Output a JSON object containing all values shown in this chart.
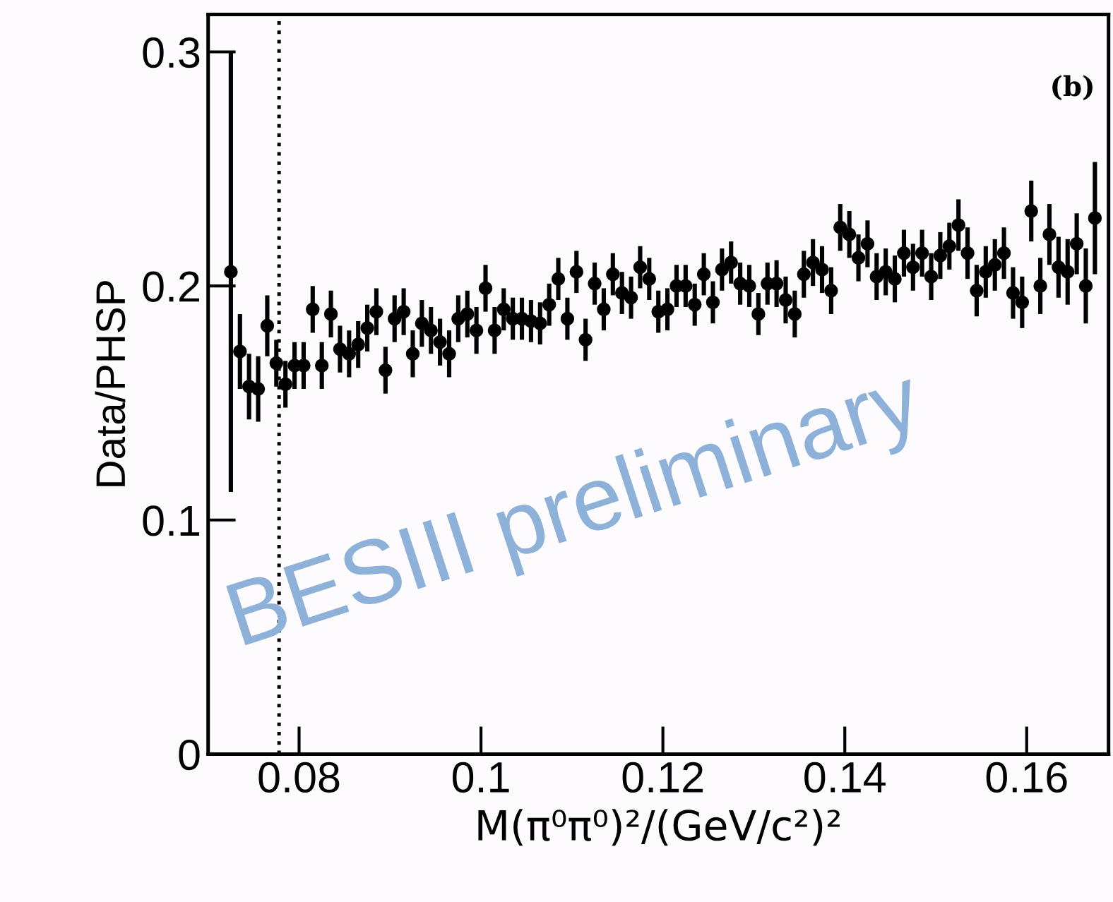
{
  "chart_data": {
    "type": "scatter",
    "xlabel": "M(π⁰π⁰)²/(GeV/c²)²",
    "ylabel": "Data/PHSP",
    "annotations": [
      "(b)",
      "BESIII preliminary"
    ],
    "x": [
      0.0725,
      0.0735,
      0.0745,
      0.0755,
      0.0765,
      0.0775,
      0.0785,
      0.0795,
      0.0805,
      0.0815,
      0.0825,
      0.0835,
      0.0845,
      0.0855,
      0.0865,
      0.0875,
      0.0885,
      0.0895,
      0.0905,
      0.0915,
      0.0925,
      0.0935,
      0.0945,
      0.0955,
      0.0965,
      0.0975,
      0.0985,
      0.0995,
      0.1005,
      0.1015,
      0.1025,
      0.1035,
      0.1045,
      0.1055,
      0.1065,
      0.1075,
      0.1085,
      0.1095,
      0.1105,
      0.1115,
      0.1125,
      0.1135,
      0.1145,
      0.1155,
      0.1165,
      0.1175,
      0.1185,
      0.1195,
      0.1205,
      0.1215,
      0.1225,
      0.1235,
      0.1245,
      0.1255,
      0.1265,
      0.1275,
      0.1285,
      0.1295,
      0.1305,
      0.1315,
      0.1325,
      0.1335,
      0.1345,
      0.1355,
      0.1365,
      0.1375,
      0.1385,
      0.1395,
      0.1405,
      0.1415,
      0.1425,
      0.1435,
      0.1445,
      0.1455,
      0.1465,
      0.1475,
      0.1485,
      0.1495,
      0.1505,
      0.1515,
      0.1525,
      0.1535,
      0.1545,
      0.1555,
      0.1565,
      0.1575,
      0.1585,
      0.1595,
      0.1605,
      0.1615,
      0.1625,
      0.1635,
      0.1645,
      0.1655,
      0.1665,
      0.1675
    ],
    "series": [
      {
        "color": "#000000",
        "values": [
          0.206,
          0.172,
          0.157,
          0.156,
          0.183,
          0.167,
          0.158,
          0.166,
          0.166,
          0.19,
          0.166,
          0.188,
          0.173,
          0.171,
          0.175,
          0.182,
          0.189,
          0.164,
          0.186,
          0.189,
          0.171,
          0.184,
          0.181,
          0.176,
          0.171,
          0.186,
          0.188,
          0.181,
          0.199,
          0.181,
          0.19,
          0.186,
          0.186,
          0.185,
          0.184,
          0.192,
          0.203,
          0.186,
          0.206,
          0.177,
          0.201,
          0.19,
          0.205,
          0.197,
          0.195,
          0.208,
          0.203,
          0.189,
          0.19,
          0.2,
          0.2,
          0.192,
          0.205,
          0.193,
          0.207,
          0.21,
          0.201,
          0.2,
          0.188,
          0.201,
          0.201,
          0.194,
          0.188,
          0.205,
          0.21,
          0.207,
          0.198,
          0.225,
          0.222,
          0.212,
          0.218,
          0.204,
          0.206,
          0.203,
          0.214,
          0.208,
          0.214,
          0.204,
          0.213,
          0.217,
          0.226,
          0.214,
          0.198,
          0.206,
          0.209,
          0.214,
          0.197,
          0.193,
          0.232,
          0.2,
          0.222,
          0.208,
          0.206,
          0.218,
          0.2,
          0.229
        ],
        "errors": [
          0.094,
          0.016,
          0.014,
          0.014,
          0.013,
          0.01,
          0.01,
          0.01,
          0.01,
          0.01,
          0.01,
          0.01,
          0.01,
          0.01,
          0.01,
          0.01,
          0.01,
          0.01,
          0.01,
          0.01,
          0.01,
          0.01,
          0.01,
          0.01,
          0.01,
          0.01,
          0.01,
          0.01,
          0.01,
          0.01,
          0.009,
          0.009,
          0.009,
          0.009,
          0.009,
          0.009,
          0.009,
          0.009,
          0.009,
          0.009,
          0.009,
          0.009,
          0.009,
          0.009,
          0.009,
          0.009,
          0.009,
          0.009,
          0.009,
          0.009,
          0.009,
          0.009,
          0.009,
          0.009,
          0.009,
          0.009,
          0.009,
          0.009,
          0.009,
          0.009,
          0.01,
          0.01,
          0.01,
          0.01,
          0.01,
          0.01,
          0.01,
          0.01,
          0.01,
          0.01,
          0.01,
          0.01,
          0.01,
          0.01,
          0.01,
          0.01,
          0.01,
          0.01,
          0.01,
          0.01,
          0.011,
          0.011,
          0.011,
          0.011,
          0.011,
          0.011,
          0.011,
          0.011,
          0.013,
          0.012,
          0.013,
          0.013,
          0.014,
          0.013,
          0.016,
          0.024
        ]
      }
    ],
    "marker": "circle",
    "xlim": [
      0.07,
      0.169
    ],
    "ylim": [
      0,
      0.316
    ],
    "xticks": [
      0.08,
      0.1,
      0.12,
      0.14,
      0.16
    ],
    "yticks": [
      0,
      0.1,
      0.2,
      0.3
    ],
    "ref_lines": [
      {
        "axis": "x",
        "value": 0.0778,
        "color": "#000000",
        "line_style": "dotted"
      }
    ],
    "grid": false,
    "legend": false
  }
}
